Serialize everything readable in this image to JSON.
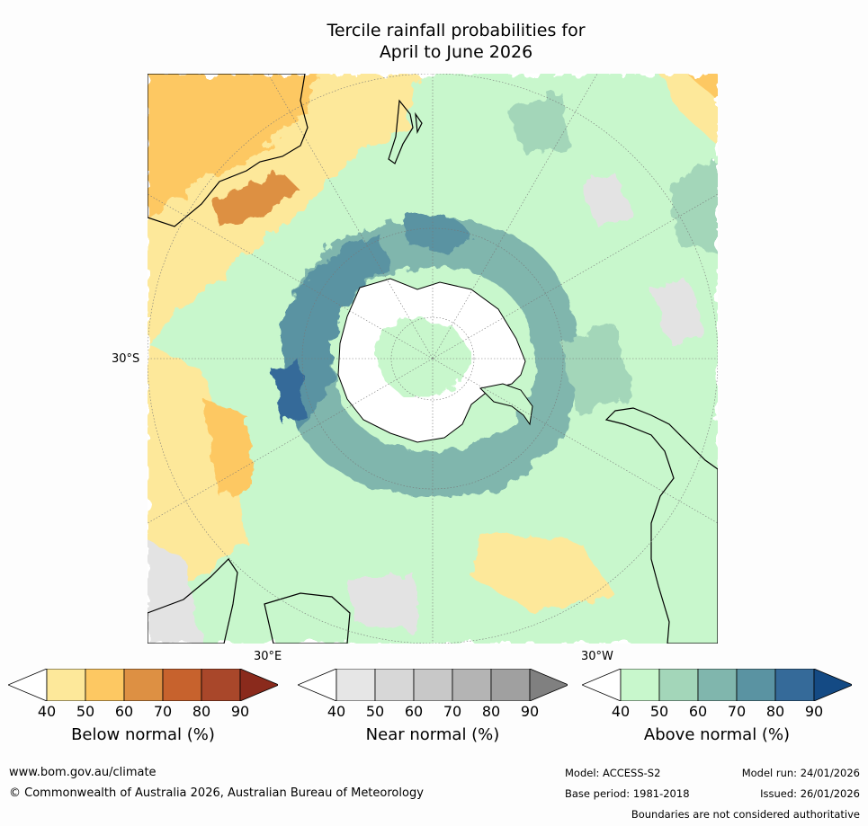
{
  "title_line1": "Tercile rainfall probabilities for",
  "title_line2": "April to June 2026",
  "map": {
    "projection": "south-polar-stereographic",
    "lat_label": "30°S",
    "lon_label_left": "30°E",
    "lon_label_right": "30°W",
    "colors": {
      "background": "#ffffff",
      "below": [
        "#fde89a",
        "#fdc862",
        "#dd9043"
      ],
      "near": [
        "#e3e3e3",
        "#cdcdcd"
      ],
      "above": [
        "#c8f7cc",
        "#a3d6b9",
        "#80b6ad",
        "#5a93a2",
        "#356a99"
      ],
      "land_outline": "#000000",
      "grid": "#777777"
    }
  },
  "colorbars": [
    {
      "name": "below",
      "title": "Below normal (%)",
      "ticks": [
        "40",
        "50",
        "60",
        "70",
        "80",
        "90"
      ],
      "colors": [
        "#fde89a",
        "#fdc862",
        "#dd9043",
        "#c7622d",
        "#a9472a"
      ],
      "under_color": "#ffffff",
      "over_color": "#8a2a1c"
    },
    {
      "name": "near",
      "title": "Near normal (%)",
      "ticks": [
        "40",
        "50",
        "60",
        "70",
        "80",
        "90"
      ],
      "colors": [
        "#e6e6e6",
        "#d7d7d7",
        "#c8c8c8",
        "#b4b4b4",
        "#a0a0a0"
      ],
      "under_color": "#ffffff",
      "over_color": "#808080"
    },
    {
      "name": "above",
      "title": "Above normal (%)",
      "ticks": [
        "40",
        "50",
        "60",
        "70",
        "80",
        "90"
      ],
      "colors": [
        "#c8f7cc",
        "#a3d6b9",
        "#80b6ad",
        "#5a93a2",
        "#356a99"
      ],
      "under_color": "#ffffff",
      "over_color": "#144a84"
    }
  ],
  "footer": {
    "website": "www.bom.gov.au/climate",
    "copyright": "© Commonwealth of Australia 2026, Australian Bureau of Meteorology",
    "model": "Model: ACCESS-S2",
    "base_period": "Base period: 1981-2018",
    "model_run": "Model run: 24/01/2026",
    "issued": "Issued: 26/01/2026",
    "disclaimer": "Boundaries are not considered authoritative"
  }
}
